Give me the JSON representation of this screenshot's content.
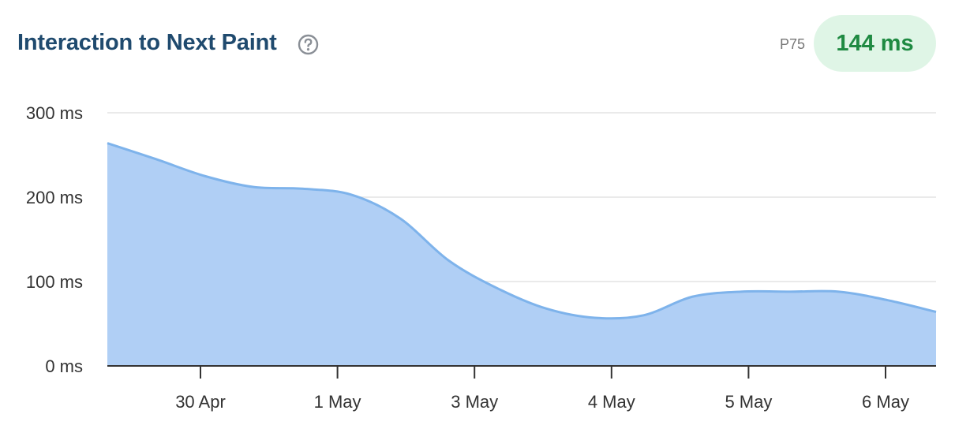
{
  "header": {
    "title": "Interaction to Next Paint",
    "help_icon": "help-circle-icon",
    "p75_label": "P75",
    "p75_value": "144 ms",
    "p75_value_color": "#1f8a42",
    "pill_color": "#dff5e6"
  },
  "chart_data": {
    "type": "area",
    "title": "",
    "xlabel": "",
    "ylabel": "",
    "ylim": [
      0,
      300
    ],
    "y_ticks": [
      0,
      100,
      200,
      300
    ],
    "y_tick_labels": [
      "0 ms",
      "100 ms",
      "200 ms",
      "300 ms"
    ],
    "x_tick_labels": [
      "30 Apr",
      "1 May",
      "3 May",
      "4 May",
      "5 May",
      "6 May"
    ],
    "grid": true,
    "fill_color": "#b0cff5",
    "line_color": "#7eb3eb",
    "series": [
      {
        "values": [
          264,
          245,
          225,
          212,
          210,
          203,
          175,
          125,
          92,
          68,
          57,
          60,
          82,
          88,
          88,
          88,
          78,
          64
        ]
      }
    ]
  }
}
